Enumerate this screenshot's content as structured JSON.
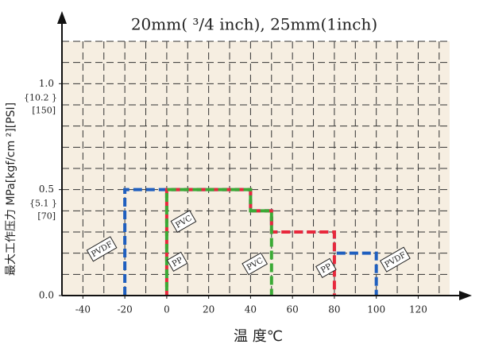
{
  "chart_data": {
    "type": "line",
    "title": "20mm( ³/4 inch), 25mm(1inch)",
    "x_label": "温 度℃",
    "y_label": "最大工作压力 MPa[kgf/cm ²][PSI]",
    "xlim": [
      -50,
      135
    ],
    "ylim": [
      0,
      1.2
    ],
    "xticks": [
      -40,
      -20,
      0,
      20,
      40,
      60,
      80,
      100,
      120
    ],
    "yticks": [
      {
        "value": 0,
        "label": "0.0"
      },
      {
        "value": 0.5,
        "label": "0.5"
      },
      {
        "value": 1,
        "label": "1.0"
      }
    ],
    "secondary_tick_labels": [
      {
        "value": 0.5,
        "kgf": "{5.1 }",
        "psi": "[70]"
      },
      {
        "value": 1,
        "kgf": "{10.2 }",
        "psi": "[150]"
      }
    ],
    "grid": true,
    "series": [
      {
        "name": "PVDF",
        "color": "#1f5fbf",
        "x": [
          -20,
          -20,
          40,
          40,
          50,
          50,
          80,
          80,
          100,
          100
        ],
        "values": [
          0,
          0.5,
          0.5,
          0.4,
          0.4,
          0.3,
          0.3,
          0.2,
          0.2,
          0
        ]
      },
      {
        "name": "PP",
        "color": "#e8283c",
        "x": [
          0,
          0,
          40,
          40,
          50,
          50,
          80,
          80
        ],
        "values": [
          0,
          0.5,
          0.5,
          0.4,
          0.4,
          0.3,
          0.3,
          0
        ]
      },
      {
        "name": "PVC",
        "color": "#3aaa35",
        "x": [
          0,
          0,
          40,
          40,
          50,
          50
        ],
        "values": [
          0,
          0.5,
          0.5,
          0.4,
          0.4,
          0
        ]
      }
    ]
  }
}
